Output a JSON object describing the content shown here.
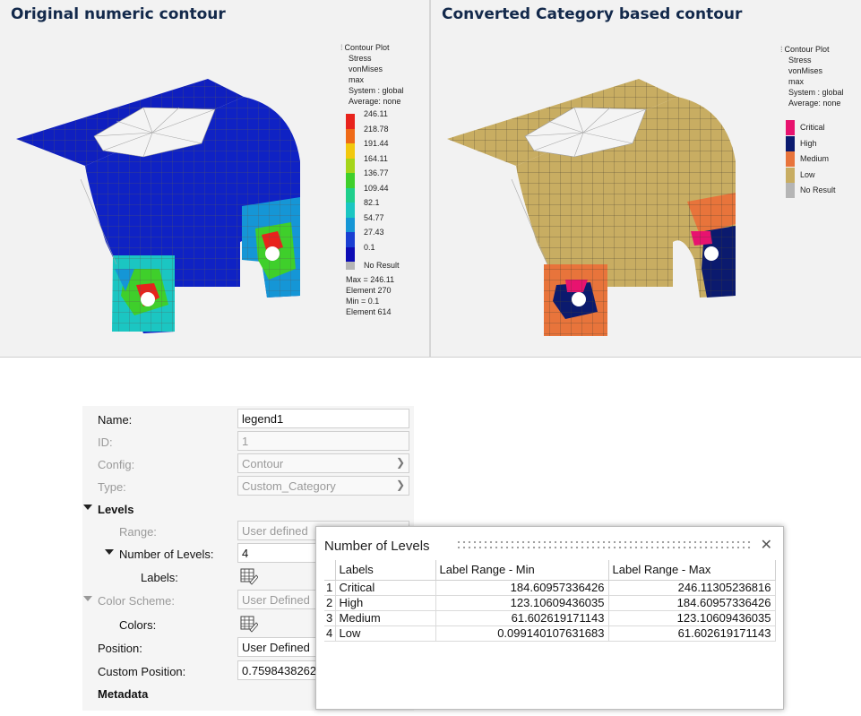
{
  "left_viewport": {
    "title": "Original numeric contour",
    "legend": {
      "header": [
        "Contour Plot",
        "Stress",
        "vonMises",
        "max",
        "System :  global",
        "Average: none"
      ],
      "levels": [
        {
          "label": "246.11",
          "color": "#e8231c"
        },
        {
          "label": "218.78",
          "color": "#ef6a17"
        },
        {
          "label": "191.44",
          "color": "#f2c80e"
        },
        {
          "label": "164.11",
          "color": "#a5d51a"
        },
        {
          "label": "136.77",
          "color": "#3fcf2b"
        },
        {
          "label": "109.44",
          "color": "#1fcf8c"
        },
        {
          "label": "82.1",
          "color": "#1bc6c2"
        },
        {
          "label": "54.77",
          "color": "#1596d6"
        },
        {
          "label": "27.43",
          "color": "#1a3fd2"
        },
        {
          "label": "0.1",
          "color": "#0d0cb5"
        }
      ],
      "no_result_label": "No Result",
      "no_result_color": "#b5b5b5",
      "footer": [
        "Max = 246.11",
        "Element 270",
        "Min =   0.1",
        "Element 614"
      ]
    }
  },
  "right_viewport": {
    "title": "Converted Category based contour",
    "legend": {
      "header": [
        "Contour Plot",
        "Stress",
        "vonMises",
        "max",
        "System :  global",
        "Average: none"
      ],
      "categories": [
        {
          "label": "Critical",
          "color": "#e8136f"
        },
        {
          "label": "High",
          "color": "#0b1a6e"
        },
        {
          "label": "Medium",
          "color": "#e8743b"
        },
        {
          "label": "Low",
          "color": "#c8ad62"
        },
        {
          "label": "No Result",
          "color": "#b5b5b5"
        }
      ]
    }
  },
  "panel": {
    "name_label": "Name:",
    "name_value": "legend1",
    "id_label": "ID:",
    "id_value": "1",
    "config_label": "Config:",
    "config_value": "Contour",
    "type_label": "Type:",
    "type_value": "Custom_Category",
    "levels_section": "Levels",
    "range_label": "Range:",
    "range_value": "User defined",
    "num_levels_label": "Number of Levels:",
    "num_levels_value": "4",
    "labels_label": "Labels:",
    "color_scheme_label": "Color Scheme:",
    "color_scheme_value": "User Defined",
    "colors_label": "Colors:",
    "position_label": "Position:",
    "position_value": "User Defined",
    "custom_position_label": "Custom Position:",
    "custom_position_value": "0.7598438262",
    "metadata_section": "Metadata"
  },
  "dialog": {
    "title": "Number of Levels",
    "close_glyph": "✕",
    "columns": [
      "Labels",
      "Label Range - Min",
      "Label Range - Max"
    ],
    "rows": [
      {
        "index": "1",
        "label": "Critical",
        "min": "184.60957336426",
        "max": "246.11305236816"
      },
      {
        "index": "2",
        "label": "High",
        "min": "123.10609436035",
        "max": "184.60957336426"
      },
      {
        "index": "3",
        "label": "Medium",
        "min": "61.602619171143",
        "max": "123.10609436035"
      },
      {
        "index": "4",
        "label": "Low",
        "min": "0.099140107631683",
        "max": "61.602619171143"
      }
    ]
  }
}
